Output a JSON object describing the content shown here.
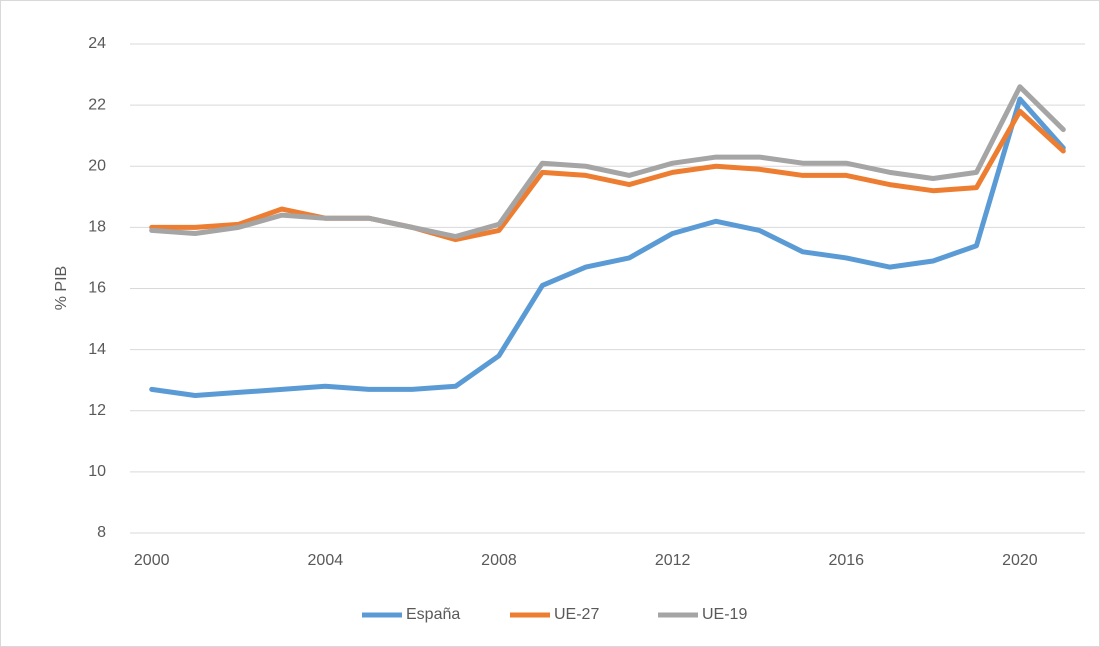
{
  "chart_data": {
    "type": "line",
    "y_label": "% PIB",
    "x": [
      2000,
      2001,
      2002,
      2003,
      2004,
      2005,
      2006,
      2007,
      2008,
      2009,
      2010,
      2011,
      2012,
      2013,
      2014,
      2015,
      2016,
      2017,
      2018,
      2019,
      2020,
      2021
    ],
    "xlim": [
      1999.5,
      2021.5
    ],
    "xticks": [
      2000,
      2004,
      2008,
      2012,
      2016,
      2020
    ],
    "ylim": [
      8,
      24
    ],
    "yticks": [
      8,
      10,
      12,
      14,
      16,
      18,
      20,
      22,
      24
    ],
    "grid": true,
    "legend": "bottom",
    "series": [
      {
        "name": "España",
        "color": "#5b9bd5",
        "values": [
          12.7,
          12.5,
          12.6,
          12.7,
          12.8,
          12.7,
          12.7,
          12.8,
          13.8,
          16.1,
          16.7,
          17.0,
          17.8,
          18.2,
          17.9,
          17.2,
          17.0,
          16.7,
          16.9,
          17.4,
          22.2,
          20.6
        ]
      },
      {
        "name": "UE-27",
        "color": "#ed7d31",
        "values": [
          18.0,
          18.0,
          18.1,
          18.6,
          18.3,
          18.3,
          18.0,
          17.6,
          17.9,
          19.8,
          19.7,
          19.4,
          19.8,
          20.0,
          19.9,
          19.7,
          19.7,
          19.4,
          19.2,
          19.3,
          21.8,
          20.5
        ]
      },
      {
        "name": "UE-19",
        "color": "#a5a5a5",
        "values": [
          17.9,
          17.8,
          18.0,
          18.4,
          18.3,
          18.3,
          18.0,
          17.7,
          18.1,
          20.1,
          20.0,
          19.7,
          20.1,
          20.3,
          20.3,
          20.1,
          20.1,
          19.8,
          19.6,
          19.8,
          22.6,
          21.2
        ]
      }
    ]
  }
}
